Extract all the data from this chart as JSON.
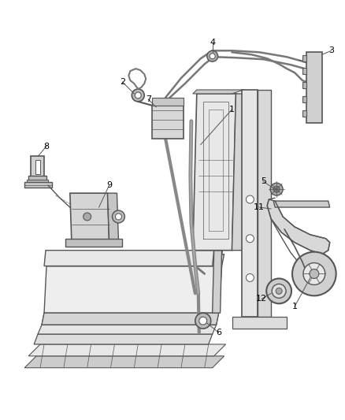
{
  "background_color": "#ffffff",
  "fig_width": 4.38,
  "fig_height": 5.33,
  "dpi": 100,
  "line_color": "#555555",
  "light_gray": "#cccccc",
  "mid_gray": "#999999",
  "dark_gray": "#666666"
}
